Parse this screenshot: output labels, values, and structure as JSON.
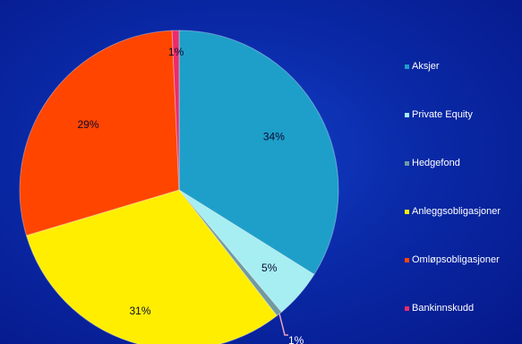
{
  "chart_data": {
    "type": "pie",
    "series": [
      {
        "name": "Aksjer",
        "value": 34,
        "label": "34%",
        "color": "#1e9fc9"
      },
      {
        "name": "Private Equity",
        "value": 5,
        "label": "5%",
        "color": "#a6eef2"
      },
      {
        "name": "Hedgefond",
        "value": 0.6,
        "label": "1%",
        "color": "#6f9aa0"
      },
      {
        "name": "Anleggsobligasjoner",
        "value": 31,
        "label": "31%",
        "color": "#ffee00"
      },
      {
        "name": "Omløpsobligasjoner",
        "value": 29,
        "label": "29%",
        "color": "#ff4500"
      },
      {
        "name": "Bankinnskudd",
        "value": 0.7,
        "label": "1%",
        "color": "#ee2a6a"
      }
    ],
    "legend_position": "right"
  }
}
